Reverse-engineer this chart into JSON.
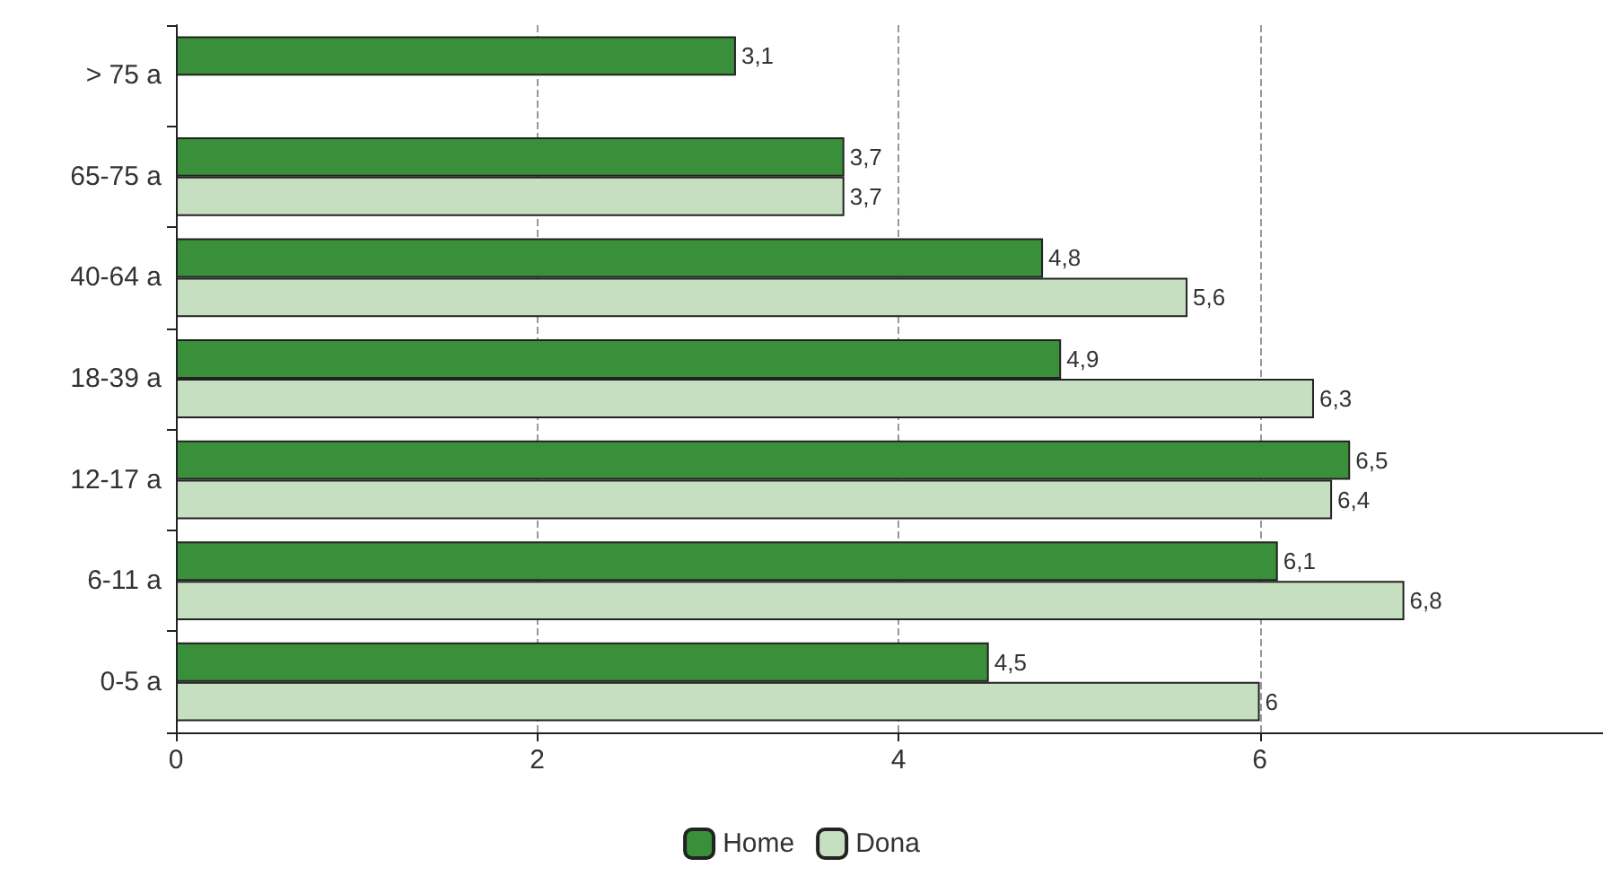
{
  "chart_data": {
    "type": "bar",
    "orientation": "horizontal",
    "categories": [
      "> 75 a",
      "65-75 a",
      "40-64 a",
      "18-39 a",
      "12-17 a",
      "6-11 a",
      "0-5 a"
    ],
    "series": [
      {
        "name": "Home",
        "color": "#3a8f3a",
        "values": [
          3.1,
          3.7,
          4.8,
          4.9,
          6.5,
          6.1,
          4.5
        ],
        "value_labels": [
          "3,1",
          "3,7",
          "4,8",
          "4,9",
          "6,5",
          "6,1",
          "4,5"
        ]
      },
      {
        "name": "Dona",
        "color": "#c6dfc1",
        "values": [
          null,
          3.7,
          5.6,
          6.3,
          6.4,
          6.8,
          6
        ],
        "value_labels": [
          null,
          "3,7",
          "5,6",
          "6,3",
          "6,4",
          "6,8",
          "6"
        ]
      }
    ],
    "xlim": [
      0,
      7.9
    ],
    "xticks": [
      0,
      2,
      4,
      6
    ],
    "grid": "x",
    "legend": "bottom"
  }
}
